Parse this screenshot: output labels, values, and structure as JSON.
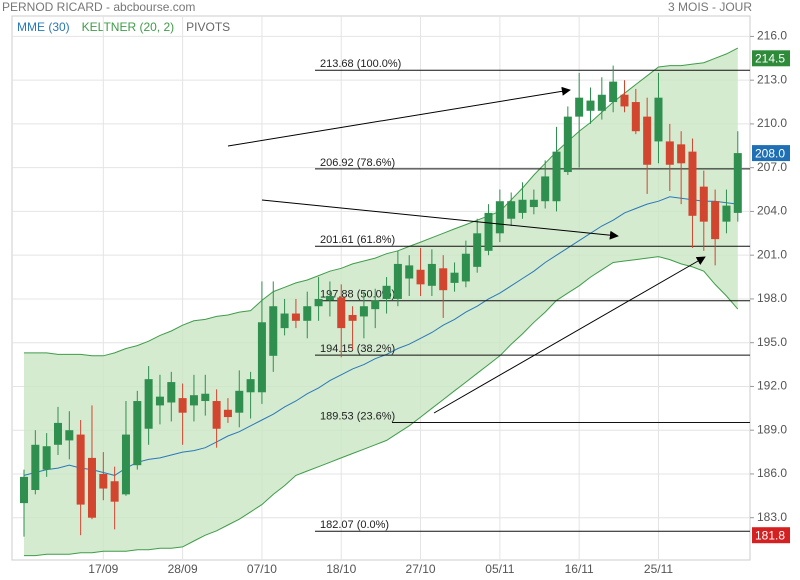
{
  "chart_data": {
    "type": "candlestick",
    "title": "PERNOD RICARD - abcbourse.com",
    "subtitle": "3 MOIS - JOUR",
    "categories": [
      null,
      null,
      null,
      null,
      null,
      null,
      null,
      "17/09",
      null,
      null,
      null,
      null,
      null,
      null,
      "28/09",
      null,
      null,
      null,
      null,
      null,
      null,
      "07/10",
      null,
      null,
      null,
      null,
      null,
      null,
      "18/10",
      null,
      null,
      null,
      null,
      null,
      null,
      "27/10",
      null,
      null,
      null,
      null,
      null,
      null,
      "05/11",
      null,
      null,
      null,
      null,
      null,
      null,
      "16/11",
      null,
      null,
      null,
      null,
      null,
      null,
      "25/11",
      null,
      null,
      null,
      null,
      null,
      null,
      null
    ],
    "candles": {
      "up_color": "#2f8f4e",
      "down_color": "#d2452f",
      "open": [
        184.0,
        184.9,
        186.3,
        188.0,
        188.3,
        188.7,
        187.1,
        186.0,
        185.5,
        184.6,
        186.6,
        189.1,
        190.7,
        190.9,
        191.2,
        190.7,
        191.0,
        191.0,
        190.4,
        190.2,
        191.6,
        191.6,
        194.1,
        196.0,
        197.0,
        196.5,
        197.5,
        197.9,
        198.1,
        196.9,
        196.8,
        197.3,
        198.0,
        198.0,
        199.4,
        200.0,
        198.9,
        200.1,
        199.1,
        199.2,
        200.2,
        201.3,
        202.5,
        203.5,
        203.9,
        204.3,
        204.7,
        204.7,
        206.7,
        210.5,
        210.9,
        210.9,
        211.5,
        212.0,
        211.5,
        210.5,
        208.8,
        208.8,
        208.6,
        208.1,
        205.7,
        204.7,
        203.3,
        203.9
      ],
      "high": [
        186.3,
        189.0,
        188.8,
        190.6,
        190.3,
        189.7,
        190.7,
        187.5,
        186.5,
        191.0,
        191.7,
        193.4,
        192.8,
        193.0,
        192.2,
        192.8,
        192.8,
        191.8,
        191.2,
        193.1,
        193.0,
        199.2,
        199.2,
        198.0,
        198.0,
        198.5,
        199.5,
        199.2,
        199.0,
        197.5,
        198.5,
        198.7,
        199.5,
        201.3,
        201.0,
        201.5,
        201.4,
        201.0,
        200.5,
        202.0,
        203.5,
        204.5,
        205.5,
        205.3,
        206.0,
        205.5,
        207.5,
        209.8,
        211.2,
        213.5,
        212.5,
        213.2,
        214.0,
        213.0,
        212.4,
        211.8,
        213.5,
        210.0,
        209.5,
        209.0,
        206.8,
        205.5,
        205.5,
        209.5
      ],
      "low": [
        181.7,
        184.6,
        185.8,
        187.3,
        187.0,
        181.8,
        182.9,
        184.2,
        182.2,
        184.5,
        186.3,
        188.0,
        189.4,
        189.6,
        188.0,
        189.6,
        190.0,
        187.8,
        189.5,
        189.2,
        189.8,
        190.8,
        193.0,
        195.5,
        196.0,
        195.3,
        196.5,
        196.8,
        194.0,
        194.5,
        195.3,
        196.0,
        197.0,
        197.5,
        198.2,
        198.2,
        198.2,
        196.7,
        198.5,
        198.8,
        199.8,
        201.0,
        201.9,
        203.0,
        203.5,
        203.8,
        204.2,
        204.0,
        206.5,
        207.0,
        210.0,
        210.3,
        210.8,
        210.8,
        209.3,
        205.2,
        207.3,
        205.4,
        204.5,
        201.5,
        201.3,
        200.3,
        202.5,
        203.3
      ],
      "close": [
        185.8,
        188.0,
        187.9,
        189.5,
        189.0,
        183.9,
        183.0,
        185.0,
        184.1,
        188.7,
        191.0,
        192.5,
        191.3,
        192.3,
        190.2,
        191.4,
        191.5,
        189.1,
        189.9,
        191.7,
        192.5,
        196.4,
        197.5,
        197.0,
        196.5,
        197.5,
        198.0,
        198.2,
        196.0,
        196.5,
        197.5,
        197.9,
        198.9,
        200.4,
        200.3,
        199.0,
        200.4,
        198.6,
        199.8,
        201.1,
        202.5,
        203.9,
        204.7,
        204.7,
        204.8,
        204.8,
        206.4,
        208.1,
        210.5,
        211.8,
        211.6,
        212.0,
        212.9,
        211.2,
        209.5,
        207.2,
        211.8,
        207.2,
        207.3,
        203.7,
        203.3,
        202.1,
        204.4,
        208.0
      ]
    },
    "series": [
      {
        "name": "MME (30)",
        "color": "#2a78b8",
        "values": [
          185.9,
          186.1,
          186.3,
          186.4,
          186.6,
          186.4,
          186.3,
          186.1,
          185.9,
          186.4,
          186.8,
          187.0,
          187.1,
          187.3,
          187.5,
          187.6,
          187.8,
          188.2,
          188.6,
          188.9,
          189.3,
          189.7,
          190.1,
          190.6,
          191.0,
          191.5,
          191.9,
          192.4,
          192.8,
          193.2,
          193.5,
          193.9,
          194.2,
          194.6,
          194.9,
          195.3,
          195.7,
          196.2,
          196.6,
          197.1,
          197.5,
          198.0,
          198.4,
          198.9,
          199.4,
          199.9,
          200.5,
          201.0,
          201.5,
          202.0,
          202.5,
          203.0,
          203.4,
          203.9,
          204.2,
          204.5,
          204.7,
          205.0,
          204.9,
          204.8,
          204.7,
          204.7,
          204.6,
          204.5
        ]
      },
      {
        "name": "KELTNER (20, 2)",
        "color": "#3f9c4a",
        "fill": "#c9e6c4",
        "upper": [
          194.3,
          194.3,
          194.3,
          194.2,
          194.2,
          194.2,
          194.1,
          194.1,
          194.3,
          194.6,
          194.8,
          195.1,
          195.5,
          195.8,
          196.2,
          196.5,
          196.6,
          196.8,
          196.9,
          197.1,
          197.2,
          197.9,
          198.5,
          198.8,
          199.1,
          199.3,
          199.6,
          199.9,
          200.1,
          200.4,
          200.6,
          200.8,
          201.1,
          201.3,
          201.6,
          201.9,
          202.2,
          202.5,
          202.8,
          203.1,
          203.4,
          203.7,
          204.0,
          204.8,
          205.6,
          206.5,
          207.3,
          208.1,
          208.8,
          209.5,
          210.1,
          210.8,
          211.5,
          212.1,
          212.7,
          213.3,
          213.9,
          214.0,
          214.0,
          214.1,
          214.2,
          214.5,
          214.8,
          215.2
        ],
        "lower": [
          180.4,
          180.4,
          180.5,
          180.5,
          180.5,
          180.6,
          180.6,
          180.7,
          180.7,
          180.7,
          180.8,
          180.8,
          180.9,
          180.9,
          181.0,
          181.4,
          181.8,
          182.1,
          182.5,
          182.9,
          183.4,
          183.9,
          184.6,
          185.2,
          185.9,
          186.2,
          186.5,
          186.8,
          187.1,
          187.4,
          187.7,
          188.0,
          188.3,
          188.8,
          189.3,
          189.9,
          190.5,
          191.1,
          191.7,
          192.3,
          192.9,
          193.5,
          194.1,
          194.9,
          195.6,
          196.4,
          197.1,
          197.9,
          198.4,
          198.9,
          199.5,
          200.0,
          200.5,
          200.6,
          200.7,
          200.8,
          200.9,
          200.7,
          200.4,
          200.2,
          199.9,
          199.0,
          198.2,
          197.3
        ]
      }
    ],
    "pivots": {
      "name": "PIVOTS",
      "levels": [
        {
          "value": 213.68,
          "label": "213.68  (100.0%)"
        },
        {
          "value": 206.92,
          "label": "206.92  (78.6%)"
        },
        {
          "value": 201.61,
          "label": "201.61  (61.8%)"
        },
        {
          "value": 197.88,
          "label": "197.88  (50.0%)"
        },
        {
          "value": 194.15,
          "label": "194.15  (38.2%)"
        },
        {
          "value": 189.53,
          "label": "189.53  (23.6%)"
        },
        {
          "value": 182.07,
          "label": "182.07  (0.0%)"
        }
      ]
    },
    "price_labels": [
      {
        "value": 214.5,
        "label": "214.5",
        "color": "#2e8b3a"
      },
      {
        "value": 208.0,
        "label": "208.0",
        "color": "#1f6fb5"
      },
      {
        "value": 181.8,
        "label": "181.8",
        "color": "#d42020"
      }
    ],
    "ylim": [
      180.1,
      217.4
    ],
    "yticks": [
      {
        "value": 183,
        "label": "183.0"
      },
      {
        "value": 186,
        "label": "186.0"
      },
      {
        "value": 189,
        "label": "189.0"
      },
      {
        "value": 192,
        "label": "192.0"
      },
      {
        "value": 195,
        "label": "195.0"
      },
      {
        "value": 198,
        "label": "198.0"
      },
      {
        "value": 201,
        "label": "201.0"
      },
      {
        "value": 204,
        "label": "204.0"
      },
      {
        "value": 207,
        "label": "207.0"
      },
      {
        "value": 210,
        "label": "210.0"
      },
      {
        "value": 213,
        "label": "213.0"
      },
      {
        "value": 216,
        "label": "216.0"
      }
    ],
    "grid": true
  }
}
